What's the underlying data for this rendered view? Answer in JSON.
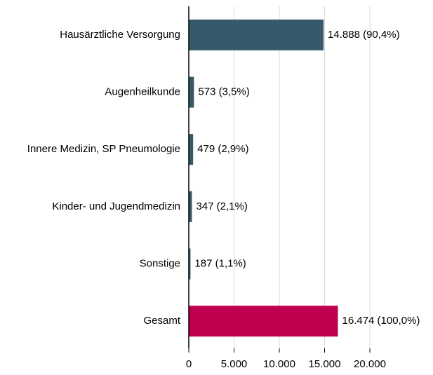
{
  "chart_data": {
    "type": "bar",
    "orientation": "horizontal",
    "categories": [
      "Hausärztliche Versorgung",
      "Augenheilkunde",
      "Innere Medizin, SP Pneumologie",
      "Kinder- und Jugendmedizin",
      "Sonstige",
      "Gesamt"
    ],
    "values": [
      14888,
      573,
      479,
      347,
      187,
      16474
    ],
    "value_labels": [
      "14.888 (90,4%)",
      "573 (3,5%)",
      "479 (2,9%)",
      "347 (2,1%)",
      "187 (1,1%)",
      "16.474 (100,0%)"
    ],
    "colors": [
      "#375a6b",
      "#375a6b",
      "#375a6b",
      "#375a6b",
      "#375a6b",
      "#c0004f"
    ],
    "xlim": [
      0,
      20000
    ],
    "xticks": [
      0,
      {
        "value": 5000,
        "label": "5.000"
      },
      {
        "value": 10000,
        "label": "10.000"
      },
      {
        "value": 15000,
        "label": "15.000"
      },
      {
        "value": 20000,
        "label": "20.000"
      }
    ],
    "grid": true
  }
}
